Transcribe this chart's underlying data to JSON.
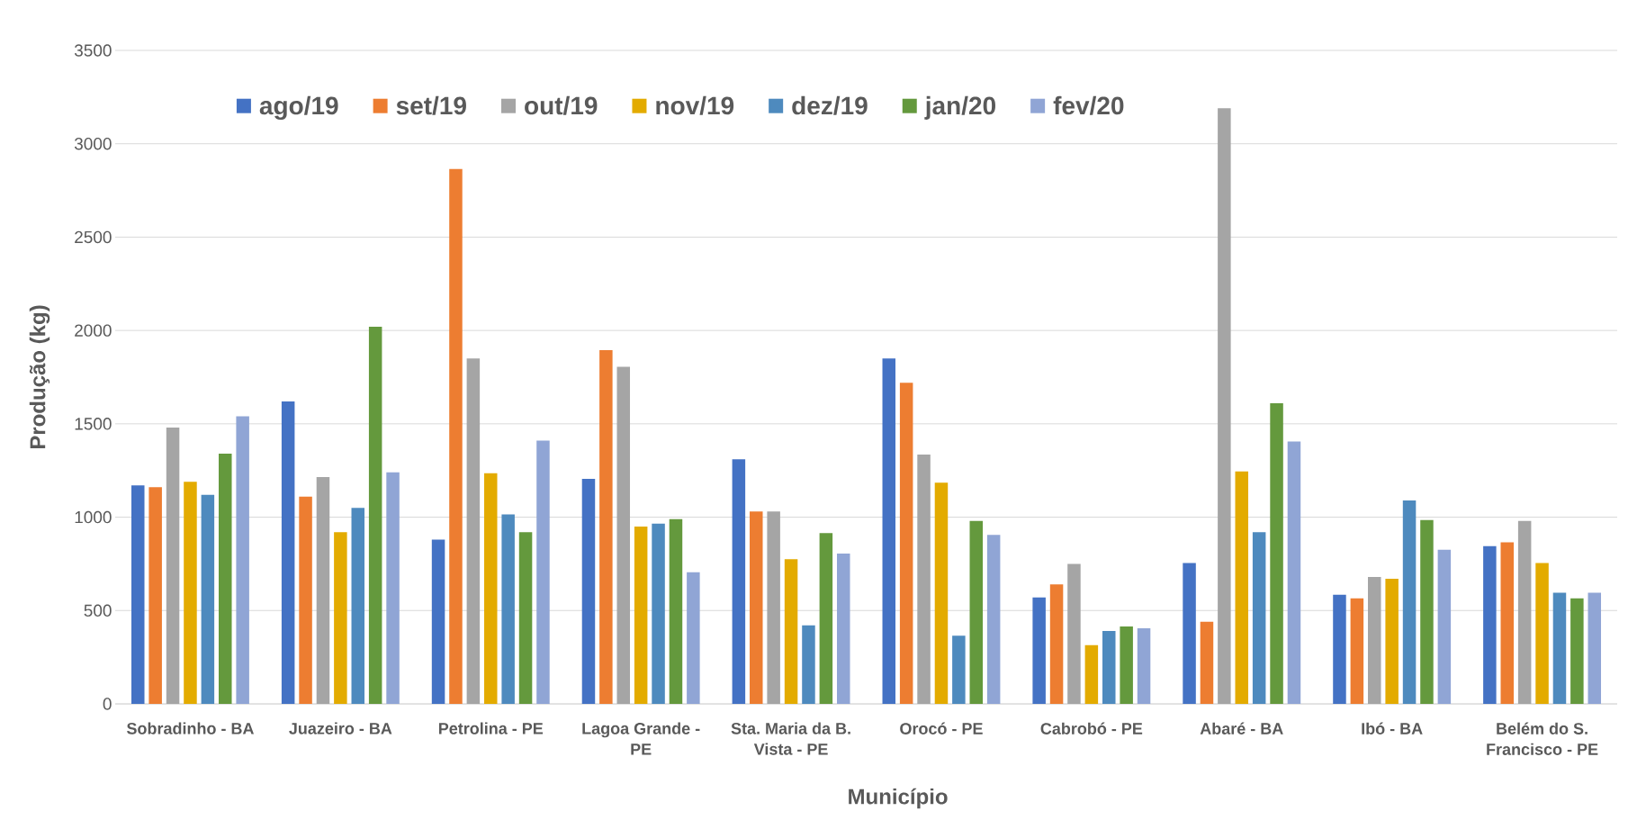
{
  "chart_data": {
    "type": "bar",
    "xlabel": "Município",
    "ylabel": "Produção (kg)",
    "categories": [
      "Sobradinho - BA",
      "Juazeiro - BA",
      "Petrolina - PE",
      "Lagoa Grande - PE",
      "Sta. Maria da B. Vista - PE",
      "Orocó - PE",
      "Cabrobó - PE",
      "Abaré - BA",
      "Ibó - BA",
      "Belém do S. Francisco - PE"
    ],
    "series": [
      {
        "name": "ago/19",
        "color": "#4472c4",
        "values": [
          1170,
          1620,
          880,
          1205,
          1310,
          1850,
          570,
          755,
          585,
          845
        ]
      },
      {
        "name": "set/19",
        "color": "#ed7d31",
        "values": [
          1160,
          1110,
          2865,
          1895,
          1030,
          1720,
          640,
          440,
          565,
          865
        ]
      },
      {
        "name": "out/19",
        "color": "#a5a5a5",
        "values": [
          1480,
          1215,
          1850,
          1805,
          1030,
          1335,
          750,
          3190,
          680,
          980
        ]
      },
      {
        "name": "nov/19",
        "color": "#e3ab00",
        "values": [
          1190,
          920,
          1235,
          950,
          775,
          1185,
          315,
          1245,
          670,
          755
        ]
      },
      {
        "name": "dez/19",
        "color": "#4e8abe",
        "values": [
          1120,
          1050,
          1015,
          965,
          420,
          365,
          390,
          920,
          1090,
          595
        ]
      },
      {
        "name": "jan/20",
        "color": "#64993d",
        "values": [
          1340,
          2020,
          920,
          990,
          915,
          980,
          415,
          1610,
          985,
          565
        ]
      },
      {
        "name": "fev/20",
        "color": "#90a5d5",
        "values": [
          1540,
          1240,
          1410,
          705,
          805,
          905,
          405,
          1405,
          825,
          595
        ]
      }
    ],
    "ylim": [
      0,
      3500
    ],
    "yticks": [
      0,
      500,
      1000,
      1500,
      2000,
      2500,
      3000,
      3500
    ],
    "grid": "y",
    "legend": "top"
  }
}
